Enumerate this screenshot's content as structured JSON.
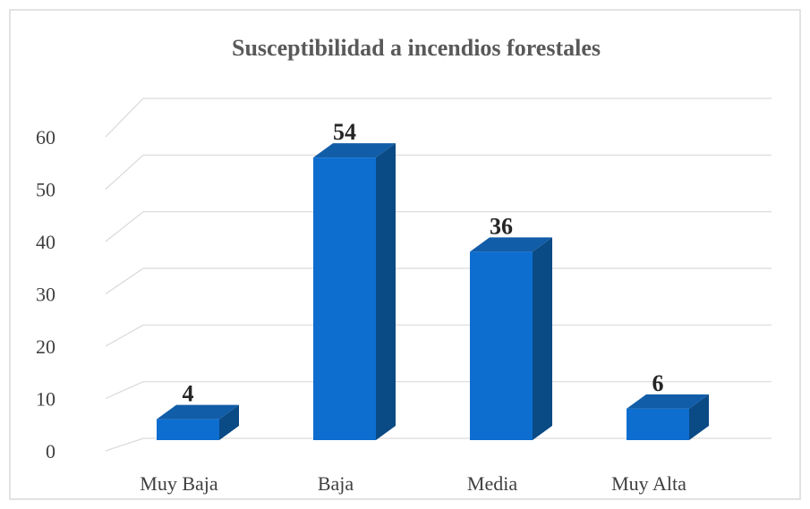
{
  "chart_data": {
    "type": "bar3d",
    "title": "Susceptibilidad a incendios forestales",
    "categories": [
      "Muy Baja",
      "Baja",
      "Media",
      "Muy Alta"
    ],
    "values": [
      4,
      54,
      36,
      6
    ],
    "color": "#0e6ecf",
    "ylim": [
      0,
      60
    ],
    "yticks": [
      0,
      10,
      20,
      30,
      40,
      50,
      60
    ],
    "grid": true
  }
}
